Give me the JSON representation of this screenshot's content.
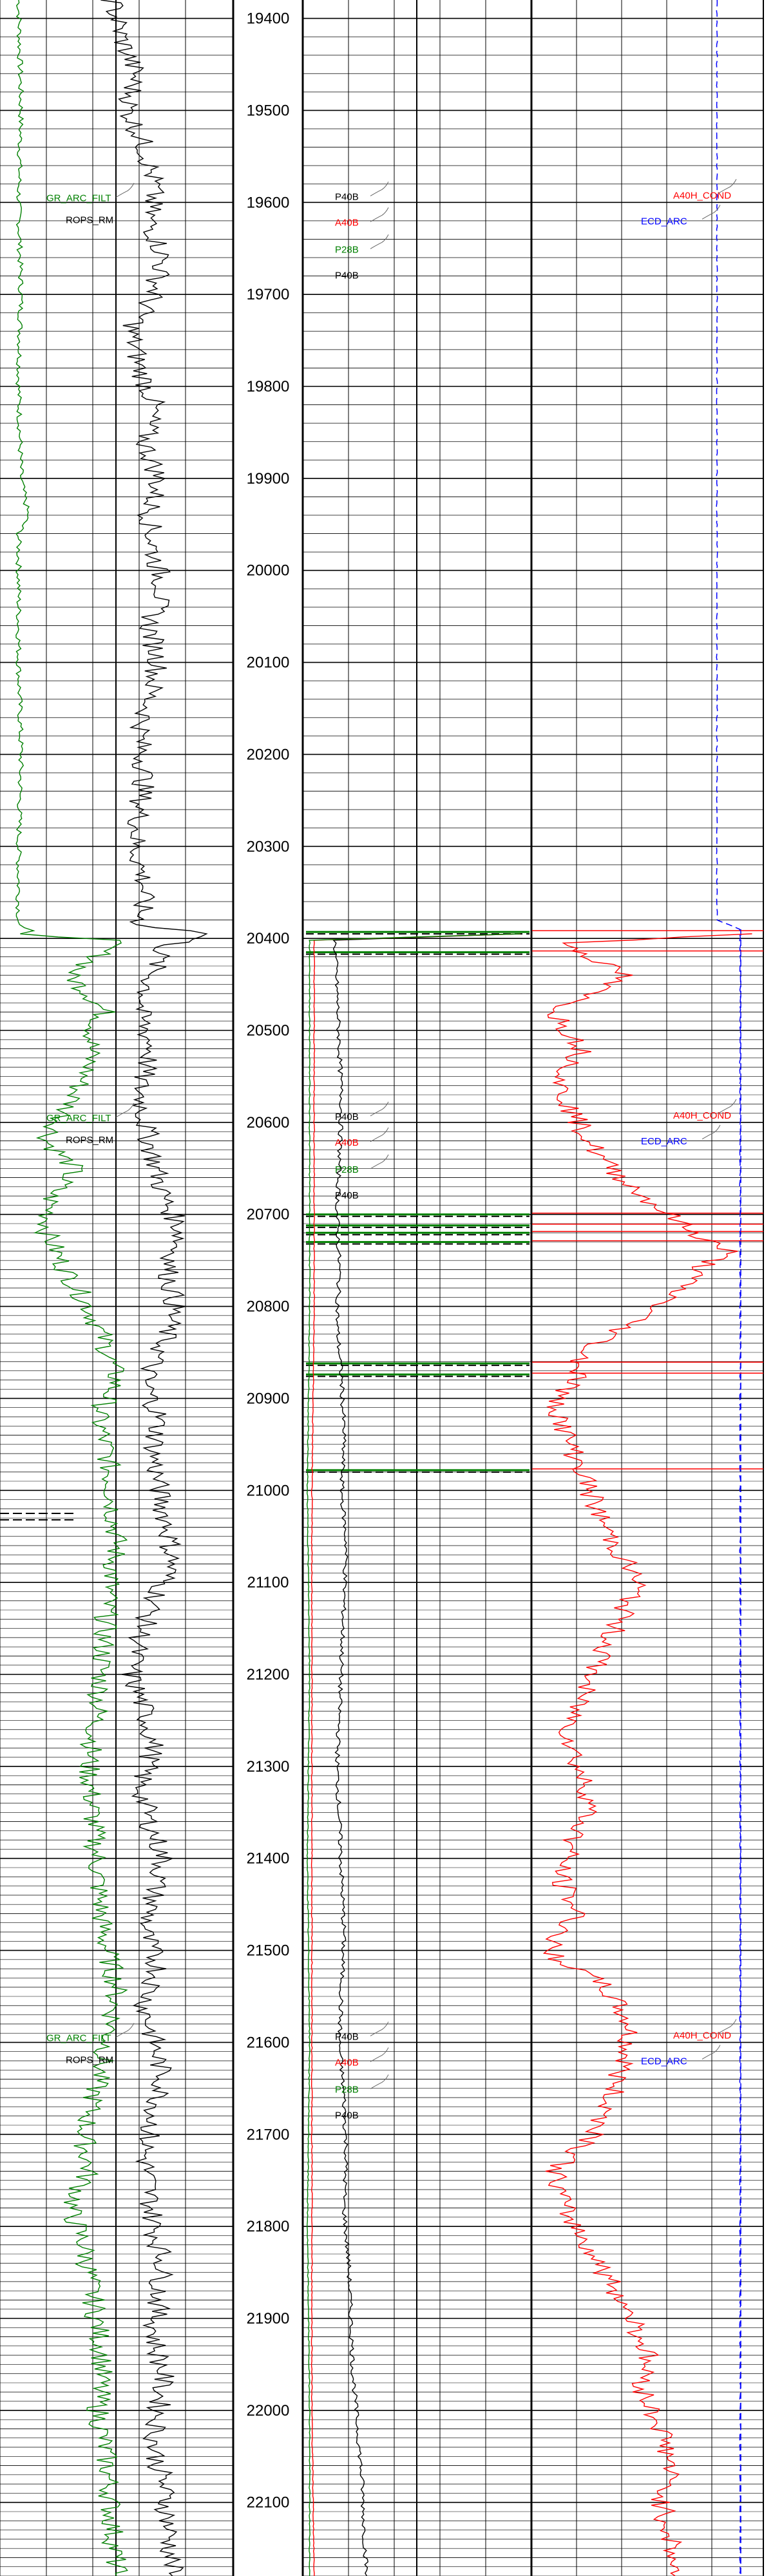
{
  "chart_data": {
    "type": "line",
    "title": "",
    "xlabel": "",
    "ylabel": "",
    "depth_range": [
      19380,
      22180
    ],
    "depth_ticks": [
      19400,
      19500,
      19600,
      19700,
      19800,
      19900,
      20000,
      20100,
      20200,
      20300,
      20400,
      20500,
      20600,
      20700,
      20800,
      20900,
      21000,
      21100,
      21200,
      21300,
      21400,
      21500,
      21600,
      21700,
      21800,
      21900,
      22000,
      22100
    ],
    "depth_tick_labels": [
      "19400",
      "19500",
      "19600",
      "19700",
      "19800",
      "19900",
      "20000",
      "20100",
      "20200",
      "20300",
      "20400",
      "20500",
      "20600",
      "20700",
      "20800",
      "20900",
      "21000",
      "21100",
      "21200",
      "21300",
      "21400",
      "21500",
      "21600",
      "21700",
      "21800",
      "21900",
      "22000",
      "22100"
    ],
    "grid": true,
    "colors": {
      "gr": "#008000",
      "rop": "#000000",
      "p40b": "#000000",
      "a40b": "#ff0000",
      "p28b": "#008000",
      "cond": "#ff0000",
      "ecd": "#0000ff",
      "grid": "#000000"
    },
    "label_groups": [
      {
        "depth": 19600,
        "track1": [
          "GR_ARC_FILT",
          "ROPS_RM"
        ],
        "track3": [
          "P40B",
          "A40B",
          "P28B",
          "P40B"
        ],
        "track4": [
          "A40H_COND",
          "ECD_ARC"
        ]
      },
      {
        "depth": 20600,
        "track1": [
          "GR_ARC_FILT",
          "ROPS_RM"
        ],
        "track3": [
          "P40B",
          "A40B",
          "P28B",
          "P40B"
        ],
        "track4": [
          "A40H_COND",
          "ECD_ARC"
        ]
      },
      {
        "depth": 21600,
        "track1": [
          "GR_ARC_FILT",
          "ROPS_RM"
        ],
        "track3": [
          "P40B",
          "A40B",
          "P28B",
          "P40B"
        ],
        "track4": [
          "A40H_COND",
          "ECD_ARC"
        ]
      }
    ],
    "series": [
      {
        "track": 1,
        "color_key": "gr",
        "x_unit": "fraction of track 1 width",
        "points": [
          [
            19380,
            0.08
          ],
          [
            19500,
            0.09
          ],
          [
            19600,
            0.08
          ],
          [
            19700,
            0.09
          ],
          [
            19800,
            0.08
          ],
          [
            19900,
            0.09
          ],
          [
            19940,
            0.12
          ],
          [
            19960,
            0.08
          ],
          [
            20100,
            0.08
          ],
          [
            20200,
            0.09
          ],
          [
            20300,
            0.08
          ],
          [
            20385,
            0.08
          ],
          [
            20395,
            0.12
          ],
          [
            20402,
            0.48
          ],
          [
            20420,
            0.42
          ],
          [
            20440,
            0.3
          ],
          [
            20460,
            0.38
          ],
          [
            20480,
            0.45
          ],
          [
            20500,
            0.4
          ],
          [
            20540,
            0.38
          ],
          [
            20580,
            0.3
          ],
          [
            20620,
            0.2
          ],
          [
            20650,
            0.32
          ],
          [
            20680,
            0.22
          ],
          [
            20720,
            0.2
          ],
          [
            20760,
            0.28
          ],
          [
            20800,
            0.38
          ],
          [
            20840,
            0.45
          ],
          [
            20880,
            0.5
          ],
          [
            20920,
            0.42
          ],
          [
            20960,
            0.46
          ],
          [
            21000,
            0.48
          ],
          [
            21060,
            0.5
          ],
          [
            21120,
            0.46
          ],
          [
            21180,
            0.44
          ],
          [
            21240,
            0.42
          ],
          [
            21300,
            0.38
          ],
          [
            21360,
            0.4
          ],
          [
            21420,
            0.42
          ],
          [
            21480,
            0.44
          ],
          [
            21540,
            0.5
          ],
          [
            21580,
            0.48
          ],
          [
            21620,
            0.44
          ],
          [
            21660,
            0.4
          ],
          [
            21700,
            0.36
          ],
          [
            21740,
            0.38
          ],
          [
            21780,
            0.3
          ],
          [
            21820,
            0.36
          ],
          [
            21880,
            0.4
          ],
          [
            21940,
            0.44
          ],
          [
            22000,
            0.42
          ],
          [
            22060,
            0.46
          ],
          [
            22120,
            0.48
          ],
          [
            22180,
            0.5
          ]
        ]
      },
      {
        "track": 1,
        "color_key": "rop",
        "x_unit": "fraction of track 1 width",
        "points": [
          [
            19380,
            0.48
          ],
          [
            19420,
            0.52
          ],
          [
            19460,
            0.58
          ],
          [
            19500,
            0.55
          ],
          [
            19540,
            0.62
          ],
          [
            19580,
            0.66
          ],
          [
            19620,
            0.64
          ],
          [
            19660,
            0.7
          ],
          [
            19700,
            0.66
          ],
          [
            19740,
            0.56
          ],
          [
            19780,
            0.6
          ],
          [
            19820,
            0.66
          ],
          [
            19860,
            0.62
          ],
          [
            19900,
            0.68
          ],
          [
            19940,
            0.64
          ],
          [
            19980,
            0.66
          ],
          [
            20020,
            0.7
          ],
          [
            20060,
            0.64
          ],
          [
            20100,
            0.68
          ],
          [
            20140,
            0.64
          ],
          [
            20180,
            0.6
          ],
          [
            20220,
            0.62
          ],
          [
            20260,
            0.6
          ],
          [
            20300,
            0.58
          ],
          [
            20340,
            0.62
          ],
          [
            20385,
            0.6
          ],
          [
            20395,
            0.9
          ],
          [
            20410,
            0.7
          ],
          [
            20440,
            0.65
          ],
          [
            20480,
            0.6
          ],
          [
            20520,
            0.65
          ],
          [
            20560,
            0.6
          ],
          [
            20600,
            0.62
          ],
          [
            20640,
            0.66
          ],
          [
            20680,
            0.7
          ],
          [
            20720,
            0.78
          ],
          [
            20760,
            0.72
          ],
          [
            20800,
            0.75
          ],
          [
            20840,
            0.7
          ],
          [
            20880,
            0.62
          ],
          [
            20920,
            0.68
          ],
          [
            20960,
            0.66
          ],
          [
            21000,
            0.68
          ],
          [
            21040,
            0.72
          ],
          [
            21080,
            0.74
          ],
          [
            21120,
            0.66
          ],
          [
            21160,
            0.6
          ],
          [
            21200,
            0.56
          ],
          [
            21240,
            0.62
          ],
          [
            21280,
            0.66
          ],
          [
            21320,
            0.6
          ],
          [
            21360,
            0.64
          ],
          [
            21400,
            0.7
          ],
          [
            21440,
            0.66
          ],
          [
            21480,
            0.62
          ],
          [
            21520,
            0.68
          ],
          [
            21560,
            0.62
          ],
          [
            21600,
            0.66
          ],
          [
            21640,
            0.7
          ],
          [
            21680,
            0.66
          ],
          [
            21720,
            0.62
          ],
          [
            21760,
            0.64
          ],
          [
            21800,
            0.66
          ],
          [
            21840,
            0.7
          ],
          [
            21880,
            0.68
          ],
          [
            21920,
            0.66
          ],
          [
            21960,
            0.7
          ],
          [
            22000,
            0.68
          ],
          [
            22040,
            0.66
          ],
          [
            22080,
            0.7
          ],
          [
            22120,
            0.72
          ],
          [
            22180,
            0.74
          ]
        ]
      },
      {
        "track": 3,
        "color_key": "p40b",
        "x_unit": "fraction of track 3 width",
        "points": [
          [
            20395,
            0.95
          ],
          [
            20402,
            0.14
          ],
          [
            20460,
            0.15
          ],
          [
            20520,
            0.16
          ],
          [
            20580,
            0.17
          ],
          [
            20640,
            0.16
          ],
          [
            20700,
            0.15
          ],
          [
            20760,
            0.16
          ],
          [
            20820,
            0.15
          ],
          [
            20880,
            0.17
          ],
          [
            20940,
            0.18
          ],
          [
            21000,
            0.17
          ],
          [
            21060,
            0.19
          ],
          [
            21120,
            0.18
          ],
          [
            21180,
            0.17
          ],
          [
            21240,
            0.16
          ],
          [
            21300,
            0.15
          ],
          [
            21360,
            0.16
          ],
          [
            21420,
            0.17
          ],
          [
            21480,
            0.18
          ],
          [
            21540,
            0.17
          ],
          [
            21600,
            0.16
          ],
          [
            21660,
            0.18
          ],
          [
            21720,
            0.19
          ],
          [
            21780,
            0.18
          ],
          [
            21840,
            0.2
          ],
          [
            21900,
            0.21
          ],
          [
            21960,
            0.22
          ],
          [
            22020,
            0.24
          ],
          [
            22080,
            0.26
          ],
          [
            22140,
            0.27
          ],
          [
            22180,
            0.28
          ]
        ]
      },
      {
        "track": 3,
        "color_key": "a40b",
        "x_unit": "fraction of track 3 width",
        "points": [
          [
            20395,
            0.95
          ],
          [
            20402,
            0.05
          ],
          [
            20600,
            0.05
          ],
          [
            20800,
            0.05
          ],
          [
            21000,
            0.04
          ],
          [
            21200,
            0.04
          ],
          [
            21400,
            0.04
          ],
          [
            21600,
            0.04
          ],
          [
            21800,
            0.04
          ],
          [
            22000,
            0.04
          ],
          [
            22180,
            0.05
          ]
        ]
      },
      {
        "track": 3,
        "color_key": "p28b",
        "x_unit": "fraction of track 3 width",
        "points": [
          [
            20395,
            0.95
          ],
          [
            20402,
            0.03
          ],
          [
            20600,
            0.03
          ],
          [
            20800,
            0.03
          ],
          [
            21000,
            0.02
          ],
          [
            21200,
            0.03
          ],
          [
            21400,
            0.02
          ],
          [
            21600,
            0.03
          ],
          [
            21800,
            0.02
          ],
          [
            22000,
            0.03
          ],
          [
            22180,
            0.03
          ]
        ]
      },
      {
        "track": 4,
        "color_key": "cond",
        "x_unit": "fraction of track 4 width",
        "points": [
          [
            20395,
            0.95
          ],
          [
            20405,
            0.15
          ],
          [
            20440,
            0.4
          ],
          [
            20480,
            0.1
          ],
          [
            20520,
            0.22
          ],
          [
            20560,
            0.12
          ],
          [
            20600,
            0.2
          ],
          [
            20640,
            0.3
          ],
          [
            20680,
            0.48
          ],
          [
            20720,
            0.7
          ],
          [
            20740,
            0.85
          ],
          [
            20760,
            0.72
          ],
          [
            20790,
            0.6
          ],
          [
            20820,
            0.42
          ],
          [
            20850,
            0.22
          ],
          [
            20880,
            0.2
          ],
          [
            20900,
            0.1
          ],
          [
            20940,
            0.15
          ],
          [
            20980,
            0.22
          ],
          [
            21020,
            0.28
          ],
          [
            21060,
            0.36
          ],
          [
            21100,
            0.46
          ],
          [
            21140,
            0.38
          ],
          [
            21180,
            0.3
          ],
          [
            21220,
            0.22
          ],
          [
            21260,
            0.16
          ],
          [
            21300,
            0.2
          ],
          [
            21340,
            0.26
          ],
          [
            21380,
            0.18
          ],
          [
            21420,
            0.12
          ],
          [
            21460,
            0.2
          ],
          [
            21500,
            0.06
          ],
          [
            21540,
            0.32
          ],
          [
            21580,
            0.42
          ],
          [
            21620,
            0.4
          ],
          [
            21660,
            0.34
          ],
          [
            21700,
            0.28
          ],
          [
            21740,
            0.1
          ],
          [
            21780,
            0.14
          ],
          [
            21820,
            0.24
          ],
          [
            21860,
            0.34
          ],
          [
            21900,
            0.44
          ],
          [
            21940,
            0.5
          ],
          [
            21980,
            0.48
          ],
          [
            22020,
            0.56
          ],
          [
            22060,
            0.6
          ],
          [
            22100,
            0.56
          ],
          [
            22140,
            0.6
          ],
          [
            22180,
            0.62
          ]
        ]
      },
      {
        "track": 4,
        "color_key": "ecd",
        "x_unit": "fraction of track 4 width",
        "points": [
          [
            19380,
            0.8
          ],
          [
            20380,
            0.8
          ],
          [
            20385,
            0.85
          ],
          [
            20390,
            0.9
          ],
          [
            20600,
            0.9
          ],
          [
            20900,
            0.9
          ],
          [
            21200,
            0.9
          ],
          [
            21600,
            0.9
          ],
          [
            22180,
            0.9
          ]
        ]
      }
    ]
  }
}
